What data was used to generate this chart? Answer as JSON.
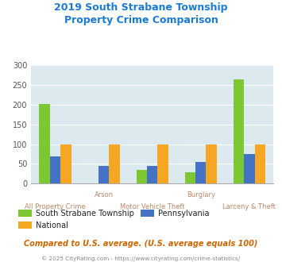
{
  "title": "2019 South Strabane Township\nProperty Crime Comparison",
  "categories": [
    "All Property Crime",
    "Arson",
    "Motor Vehicle Theft",
    "Burglary",
    "Larceny & Theft"
  ],
  "series": {
    "South Strabane Township": [
      202,
      0,
      35,
      28,
      265
    ],
    "National": [
      100,
      100,
      100,
      100,
      100
    ],
    "Pennsylvania": [
      68,
      45,
      45,
      55,
      75
    ]
  },
  "colors": {
    "South Strabane Township": "#7dc832",
    "National": "#f5a623",
    "Pennsylvania": "#4472c4"
  },
  "ylim": [
    0,
    300
  ],
  "yticks": [
    0,
    50,
    100,
    150,
    200,
    250,
    300
  ],
  "note": "Compared to U.S. average. (U.S. average equals 100)",
  "footer": "© 2025 CityRating.com - https://www.cityrating.com/crime-statistics/",
  "title_color": "#1a7ad4",
  "note_color": "#cc6600",
  "footer_color": "#888888",
  "xlabel_color": "#bb8866",
  "bg_color": "#dce9ef",
  "bar_width": 0.22,
  "group_positions": [
    0,
    1,
    2,
    3,
    4
  ]
}
